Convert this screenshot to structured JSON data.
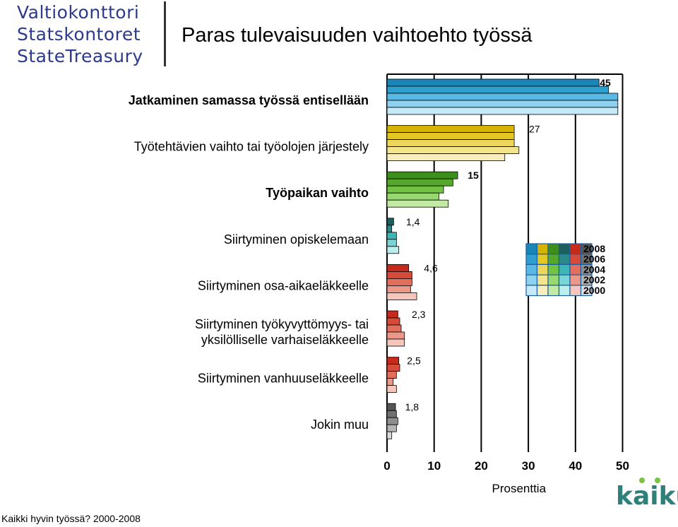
{
  "logo": {
    "line1": "Valtiokonttori",
    "line2": "Statskontoret",
    "line3": "StateTreasury"
  },
  "title": "Paras tulevaisuuden vaihtoehto työssä",
  "footer": "Kaikki hyvin työssä? 2000-2008",
  "brand": "kaiku",
  "chart_data": {
    "type": "bar",
    "orientation": "horizontal",
    "xlabel": "Prosenttia",
    "xlim": [
      0,
      50
    ],
    "xticks": [
      0,
      10,
      20,
      30,
      40,
      50
    ],
    "grid": true,
    "legend_position": "right",
    "series_names": [
      "2008",
      "2006",
      "2004",
      "2002",
      "2000"
    ],
    "categories": [
      {
        "label": [
          "Jatkaminen samassa työssä entisellään"
        ],
        "values": [
          45,
          47,
          49,
          49,
          49
        ],
        "value_label": "45",
        "label_bold": true,
        "colors": [
          "#1a86b8",
          "#2f9fd0",
          "#5ab9e3",
          "#8dd2ef",
          "#c4eaf8"
        ]
      },
      {
        "label": [
          "Työtehtävien vaihto tai työolojen järjestely"
        ],
        "values": [
          27,
          27,
          27,
          28,
          25
        ],
        "value_label": "27",
        "label_bold": false,
        "colors": [
          "#d4b400",
          "#e2c725",
          "#ecd75a",
          "#f3e48e",
          "#f8eebd"
        ]
      },
      {
        "label": [
          "Työpaikan vaihto"
        ],
        "values": [
          15,
          14,
          12,
          11,
          13
        ],
        "value_label": "15",
        "label_bold": true,
        "colors": [
          "#3d8f1c",
          "#55a82c",
          "#72c244",
          "#98d872",
          "#c2eaa4"
        ]
      },
      {
        "label": [
          "Siirtyminen opiskelemaan"
        ],
        "values": [
          1.4,
          1.0,
          2.0,
          2.0,
          2.5
        ],
        "value_label": "1,4",
        "label_bold": false,
        "colors": [
          "#1d5e5e",
          "#2a8a8a",
          "#3fb6b6",
          "#7ad6d6",
          "#bdeeee"
        ]
      },
      {
        "label": [
          "Siirtyminen osa-aikaeläkkeelle"
        ],
        "values": [
          4.6,
          5.3,
          5.3,
          5.0,
          6.3
        ],
        "value_label": "4,6",
        "label_bold": false,
        "colors": [
          "#c62a1a",
          "#d64a3a",
          "#e26e5e",
          "#ec9888",
          "#f6c6bc"
        ]
      },
      {
        "label": [
          "Siirtyminen työkyvyttömyys- tai",
          "yksilölliselle varhaiseläkkeelle"
        ],
        "values": [
          2.3,
          2.7,
          3.0,
          3.7,
          3.7
        ],
        "value_label": "2,3",
        "label_bold": false,
        "colors": [
          "#c62a1a",
          "#d64a3a",
          "#e26e5e",
          "#ec9888",
          "#f6c6bc"
        ]
      },
      {
        "label": [
          "Siirtyminen vanhuuseläkkeelle"
        ],
        "values": [
          2.5,
          2.7,
          2.0,
          1.3,
          2.0
        ],
        "value_label": "2,5",
        "label_bold": false,
        "colors": [
          "#c62a1a",
          "#d64a3a",
          "#e26e5e",
          "#ec9888",
          "#f6c6bc"
        ]
      },
      {
        "label": [
          "Jokin muu"
        ],
        "values": [
          1.8,
          2.0,
          2.3,
          2.0,
          1.0
        ],
        "value_label": "1,8",
        "label_bold": false,
        "colors": [
          "#555555",
          "#707070",
          "#8f8f8f",
          "#b4b4b4",
          "#dadada"
        ]
      }
    ],
    "legend_swatches": [
      [
        "#1a86b8",
        "#d4b400",
        "#3d8f1c",
        "#1d5e5e",
        "#c62a1a",
        "#555555"
      ],
      [
        "#2f9fd0",
        "#e2c725",
        "#55a82c",
        "#2a8a8a",
        "#d64a3a",
        "#707070"
      ],
      [
        "#5ab9e3",
        "#ecd75a",
        "#72c244",
        "#3fb6b6",
        "#e26e5e",
        "#8f8f8f"
      ],
      [
        "#8dd2ef",
        "#f3e48e",
        "#98d872",
        "#7ad6d6",
        "#ec9888",
        "#b4b4b4"
      ],
      [
        "#c4eaf8",
        "#f8eebd",
        "#c2eaa4",
        "#bdeeee",
        "#f6c6bc",
        "#dadada"
      ]
    ]
  }
}
